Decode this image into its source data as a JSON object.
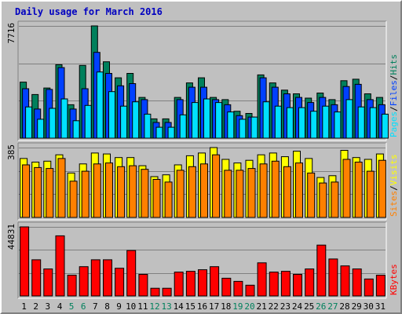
{
  "title": "Daily usage for March 2016",
  "colors": {
    "background": "#c0c0c0",
    "panel": "#c0c0c0",
    "grid": "#808080",
    "hits": "#00805c",
    "files": "#0040ff",
    "pages": "#00e0ff",
    "visits": "#ffff00",
    "sites": "#ff8000",
    "kbytes": "#ff0000",
    "weekday_label": "#000000",
    "weekend_label": "#00805c",
    "title": "#0000c0"
  },
  "chart_data": [
    {
      "type": "bar",
      "panel": "top",
      "categories": [
        "1",
        "2",
        "3",
        "4",
        "5",
        "6",
        "7",
        "8",
        "9",
        "10",
        "11",
        "12",
        "13",
        "14",
        "15",
        "16",
        "17",
        "18",
        "19",
        "20",
        "21",
        "22",
        "23",
        "24",
        "25",
        "26",
        "27",
        "28",
        "29",
        "30",
        "31"
      ],
      "y_max_label": "7716",
      "ylim": [
        0,
        7716
      ],
      "grid": true,
      "legend": [
        {
          "text": "Hits",
          "color": "#00805c"
        },
        {
          "text": "/",
          "color": "#000000"
        },
        {
          "text": "Files",
          "color": "#0040ff"
        },
        {
          "text": "/",
          "color": "#000000"
        },
        {
          "text": "Pages",
          "color": "#00e0ff"
        }
      ],
      "series": [
        {
          "name": "Hits",
          "values": [
            3850,
            3000,
            3450,
            5050,
            2300,
            5000,
            7716,
            5250,
            4150,
            4450,
            2800,
            1330,
            1330,
            2800,
            3800,
            4150,
            2800,
            2650,
            1850,
            1700,
            4350,
            3800,
            3300,
            3050,
            2750,
            3100,
            2650,
            3950,
            4050,
            3050,
            2800
          ]
        },
        {
          "name": "Files",
          "values": [
            3400,
            2000,
            3350,
            4850,
            2000,
            3400,
            5900,
            4450,
            3600,
            3750,
            2650,
            1080,
            1080,
            2650,
            3500,
            3500,
            2650,
            2300,
            1550,
            1450,
            4150,
            3500,
            3050,
            2800,
            2450,
            2800,
            2300,
            3550,
            3700,
            2650,
            2300
          ]
        },
        {
          "name": "Pages",
          "values": [
            2150,
            1300,
            2050,
            2700,
            1200,
            2250,
            4550,
            3200,
            2200,
            2500,
            1650,
            750,
            750,
            1600,
            2450,
            2700,
            2450,
            1800,
            1300,
            1450,
            2500,
            2200,
            2100,
            2100,
            1850,
            2200,
            1800,
            2650,
            2150,
            2100,
            1650
          ]
        }
      ]
    },
    {
      "type": "bar",
      "panel": "middle",
      "categories": [
        "1",
        "2",
        "3",
        "4",
        "5",
        "6",
        "7",
        "8",
        "9",
        "10",
        "11",
        "12",
        "13",
        "14",
        "15",
        "16",
        "17",
        "18",
        "19",
        "20",
        "21",
        "22",
        "23",
        "24",
        "25",
        "26",
        "27",
        "28",
        "29",
        "30",
        "31"
      ],
      "y_max_label": "385",
      "ylim": [
        0,
        385
      ],
      "grid": true,
      "legend": [
        {
          "text": "Visits",
          "color": "#ffff00"
        },
        {
          "text": "/",
          "color": "#000000"
        },
        {
          "text": "Sites",
          "color": "#ff8000"
        }
      ],
      "series": [
        {
          "name": "Visits",
          "values": [
            325,
            305,
            310,
            345,
            245,
            295,
            355,
            350,
            330,
            330,
            285,
            225,
            235,
            290,
            340,
            355,
            385,
            320,
            300,
            315,
            345,
            355,
            335,
            365,
            325,
            220,
            230,
            370,
            330,
            320,
            350
          ]
        },
        {
          "name": "Sites",
          "values": [
            290,
            275,
            270,
            325,
            200,
            255,
            295,
            300,
            280,
            285,
            265,
            210,
            195,
            260,
            280,
            295,
            345,
            260,
            260,
            270,
            295,
            310,
            280,
            300,
            245,
            190,
            195,
            320,
            305,
            255,
            315
          ]
        }
      ]
    },
    {
      "type": "bar",
      "panel": "bottom",
      "categories": [
        "1",
        "2",
        "3",
        "4",
        "5",
        "6",
        "7",
        "8",
        "9",
        "10",
        "11",
        "12",
        "13",
        "14",
        "15",
        "16",
        "17",
        "18",
        "19",
        "20",
        "21",
        "22",
        "23",
        "24",
        "25",
        "26",
        "27",
        "28",
        "29",
        "30",
        "31"
      ],
      "y_max_label": "44831",
      "ylim": [
        0,
        44831
      ],
      "grid": true,
      "legend": [
        {
          "text": "KBytes",
          "color": "#ff0000"
        }
      ],
      "series": [
        {
          "name": "KBytes",
          "values": [
            44831,
            23500,
            17500,
            39000,
            13500,
            19000,
            23500,
            23500,
            18000,
            29500,
            14000,
            5000,
            5000,
            15500,
            16000,
            17000,
            19000,
            11500,
            9500,
            7000,
            21500,
            15500,
            16000,
            14000,
            17500,
            33000,
            24000,
            19500,
            17500,
            11000,
            13500
          ]
        }
      ]
    }
  ],
  "x_labels": {
    "days": [
      "1",
      "2",
      "3",
      "4",
      "5",
      "6",
      "7",
      "8",
      "9",
      "10",
      "11",
      "12",
      "13",
      "14",
      "15",
      "16",
      "17",
      "18",
      "19",
      "20",
      "21",
      "22",
      "23",
      "24",
      "25",
      "26",
      "27",
      "28",
      "29",
      "30",
      "31"
    ],
    "weekend_days": [
      "5",
      "6",
      "12",
      "13",
      "19",
      "20",
      "26",
      "27"
    ]
  }
}
